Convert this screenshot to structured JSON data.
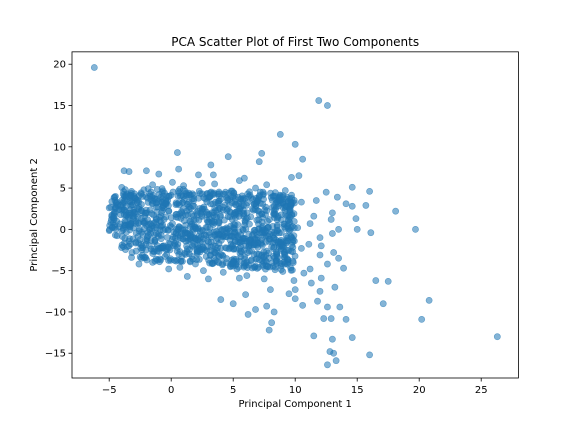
{
  "chart_data": {
    "type": "scatter",
    "title": "PCA Scatter Plot of First Two Components",
    "xlabel": "Principal Component 1",
    "ylabel": "Principal Component 2",
    "xlim": [
      -8.0,
      28.0
    ],
    "ylim": [
      -18.0,
      21.5
    ],
    "xticks": [
      -5,
      0,
      5,
      10,
      15,
      20,
      25
    ],
    "xtick_labels": [
      "−5",
      "0",
      "5",
      "10",
      "15",
      "20",
      "25"
    ],
    "yticks": [
      -15,
      -10,
      -5,
      0,
      5,
      10,
      15,
      20
    ],
    "ytick_labels": [
      "−15",
      "−10",
      "−5",
      "0",
      "5",
      "10",
      "15",
      "20"
    ],
    "grid": false,
    "color": "#1f77b4",
    "alpha": 0.5,
    "points": [
      [
        -6.2,
        19.6
      ],
      [
        11.9,
        15.6
      ],
      [
        12.6,
        15.0
      ],
      [
        8.8,
        11.5
      ],
      [
        10.0,
        10.3
      ],
      [
        0.5,
        9.3
      ],
      [
        4.6,
        8.8
      ],
      [
        10.6,
        8.5
      ],
      [
        7.3,
        9.2
      ],
      [
        7.1,
        8.2
      ],
      [
        3.2,
        7.8
      ],
      [
        0.6,
        7.3
      ],
      [
        -2.0,
        7.1
      ],
      [
        -3.8,
        7.1
      ],
      [
        -3.4,
        7.0
      ],
      [
        -1.0,
        6.7
      ],
      [
        2.2,
        6.6
      ],
      [
        3.4,
        6.6
      ],
      [
        5.9,
        6.2
      ],
      [
        9.7,
        6.3
      ],
      [
        10.3,
        6.5
      ],
      [
        14.6,
        5.1
      ],
      [
        16.0,
        4.6
      ],
      [
        12.5,
        4.5
      ],
      [
        13.4,
        3.9
      ],
      [
        11.7,
        3.5
      ],
      [
        14.1,
        3.1
      ],
      [
        14.6,
        2.8
      ],
      [
        15.7,
        2.9
      ],
      [
        18.1,
        2.2
      ],
      [
        13.0,
        2.0
      ],
      [
        14.9,
        1.3
      ],
      [
        12.9,
        1.2
      ],
      [
        11.5,
        1.6
      ],
      [
        11.2,
        0.7
      ],
      [
        13.5,
        0.0
      ],
      [
        15.0,
        0.0
      ],
      [
        16.1,
        -0.4
      ],
      [
        19.7,
        0.0
      ],
      [
        13.0,
        -0.5
      ],
      [
        12.0,
        -1.0
      ],
      [
        11.1,
        -1.8
      ],
      [
        12.1,
        -2.0
      ],
      [
        10.5,
        -2.3
      ],
      [
        13.1,
        -2.8
      ],
      [
        12.0,
        -3.1
      ],
      [
        13.5,
        -3.5
      ],
      [
        12.6,
        -4.2
      ],
      [
        13.9,
        -4.7
      ],
      [
        11.2,
        -4.8
      ],
      [
        10.7,
        -5.3
      ],
      [
        12.1,
        -5.9
      ],
      [
        9.9,
        -6.2
      ],
      [
        11.3,
        -6.5
      ],
      [
        16.5,
        -6.2
      ],
      [
        17.5,
        -6.3
      ],
      [
        13.2,
        -7.0
      ],
      [
        12.0,
        -7.5
      ],
      [
        10.0,
        -7.3
      ],
      [
        9.5,
        -7.8
      ],
      [
        8.0,
        -7.3
      ],
      [
        7.5,
        -6.0
      ],
      [
        6.0,
        -7.9
      ],
      [
        4.0,
        -8.5
      ],
      [
        5.0,
        -9.0
      ],
      [
        10.0,
        -8.4
      ],
      [
        10.6,
        -9.2
      ],
      [
        11.8,
        -8.7
      ],
      [
        12.6,
        -9.4
      ],
      [
        13.6,
        -9.4
      ],
      [
        17.1,
        -9.0
      ],
      [
        20.8,
        -8.6
      ],
      [
        7.7,
        -9.3
      ],
      [
        6.8,
        -9.7
      ],
      [
        8.3,
        -10.0
      ],
      [
        14.1,
        -10.9
      ],
      [
        12.9,
        -10.8
      ],
      [
        12.3,
        -10.8
      ],
      [
        6.2,
        -10.3
      ],
      [
        8.1,
        -11.3
      ],
      [
        20.2,
        -10.9
      ],
      [
        11.5,
        -12.9
      ],
      [
        7.9,
        -12.2
      ],
      [
        14.6,
        -13.1
      ],
      [
        13.0,
        -13.3
      ],
      [
        26.3,
        -13.0
      ],
      [
        12.8,
        -14.8
      ],
      [
        13.1,
        -15.0
      ],
      [
        16.0,
        -15.2
      ],
      [
        13.3,
        -15.9
      ],
      [
        12.6,
        -16.4
      ],
      [
        -2.6,
        -4.2
      ],
      [
        0.7,
        -4.6
      ],
      [
        2.6,
        -5.0
      ],
      [
        4.2,
        -5.2
      ],
      [
        5.3,
        -4.8
      ],
      [
        3.0,
        -6.0
      ],
      [
        1.3,
        -5.7
      ],
      [
        6.1,
        -5.6
      ],
      [
        7.8,
        -4.5
      ],
      [
        9.0,
        -5.1
      ],
      [
        8.5,
        -3.0
      ],
      [
        9.8,
        -2.7
      ],
      [
        9.4,
        -1.4
      ],
      [
        10.2,
        0.2
      ],
      [
        9.9,
        1.9
      ],
      [
        10.5,
        3.3
      ],
      [
        9.2,
        4.7
      ],
      [
        7.7,
        5.4
      ],
      [
        5.5,
        5.9
      ],
      [
        2.5,
        5.6
      ],
      [
        0.1,
        5.7
      ],
      [
        -1.5,
        5.4
      ],
      [
        -4.5,
        4.0
      ],
      [
        -5.0,
        2.6
      ],
      [
        -4.4,
        1.0
      ],
      [
        -4.5,
        -0.7
      ],
      [
        -4.0,
        -2.2
      ],
      [
        -3.2,
        -3.4
      ],
      [
        -1.5,
        -4.0
      ],
      [
        3.5,
        5.5
      ],
      [
        1.0,
        5.3
      ],
      [
        6.8,
        5.0
      ],
      [
        8.2,
        4.0
      ],
      [
        -3.7,
        3.5
      ],
      [
        9.6,
        2.4
      ],
      [
        9.3,
        -4.1
      ],
      [
        5.5,
        -5.9
      ],
      [
        -0.2,
        -4.8
      ],
      [
        -3.2,
        4.6
      ]
    ],
    "dense_cloud": {
      "count": 1100,
      "center": [
        3.2,
        0.4
      ],
      "x_range": [
        -5.0,
        10.0
      ],
      "y_range": [
        -5.0,
        5.5
      ]
    }
  }
}
